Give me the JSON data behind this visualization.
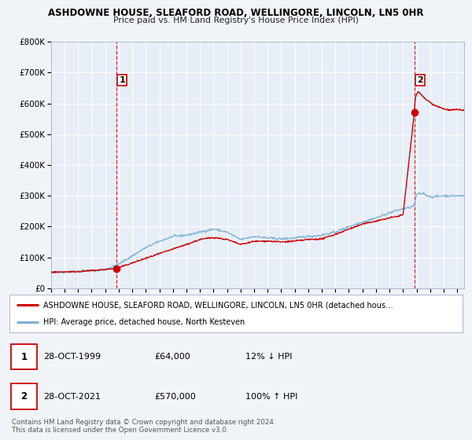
{
  "title": "ASHDOWNE HOUSE, SLEAFORD ROAD, WELLINGORE, LINCOLN, LN5 0HR",
  "subtitle": "Price paid vs. HM Land Registry's House Price Index (HPI)",
  "bg_color": "#f0f4f8",
  "plot_bg_color": "#e8eef8",
  "grid_color": "#ffffff",
  "xmin": 1995.0,
  "xmax": 2025.5,
  "ymin": 0,
  "ymax": 800000,
  "yticks": [
    0,
    100000,
    200000,
    300000,
    400000,
    500000,
    600000,
    700000,
    800000
  ],
  "ytick_labels": [
    "£0",
    "£100K",
    "£200K",
    "£300K",
    "£400K",
    "£500K",
    "£600K",
    "£700K",
    "£800K"
  ],
  "xticks": [
    1995,
    1996,
    1997,
    1998,
    1999,
    2000,
    2001,
    2002,
    2003,
    2004,
    2005,
    2006,
    2007,
    2008,
    2009,
    2010,
    2011,
    2012,
    2013,
    2014,
    2015,
    2016,
    2017,
    2018,
    2019,
    2020,
    2021,
    2022,
    2023,
    2024,
    2025
  ],
  "sale1_x": 1999.83,
  "sale1_y": 64000,
  "sale2_x": 2021.83,
  "sale2_y": 570000,
  "red_color": "#cc0000",
  "blue_color": "#7ab0d4",
  "legend_label1": "ASHDOWNE HOUSE, SLEAFORD ROAD, WELLINGORE, LINCOLN, LN5 0HR (detached hous…",
  "legend_label2": "HPI: Average price, detached house, North Kesteven",
  "table_row1": [
    "1",
    "28-OCT-1999",
    "£64,000",
    "12% ↓ HPI"
  ],
  "table_row2": [
    "2",
    "28-OCT-2021",
    "£570,000",
    "100% ↑ HPI"
  ],
  "footer1": "Contains HM Land Registry data © Crown copyright and database right 2024.",
  "footer2": "This data is licensed under the Open Government Licence v3.0."
}
